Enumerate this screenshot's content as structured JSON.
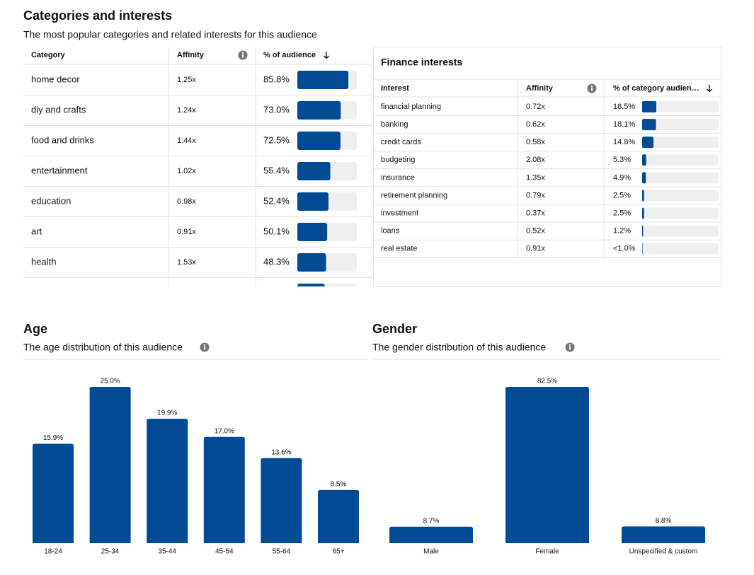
{
  "header": {
    "title": "Categories and interests",
    "subtitle": "The most popular categories and related interests for this audience"
  },
  "categories_table": {
    "columns": [
      "Category",
      "Affinity",
      "% of audience"
    ],
    "categories": [
      "home decor",
      "diy and crafts",
      "food and drinks",
      "entertainment",
      "education",
      "art",
      "health",
      null
    ],
    "affinity": [
      "1.25x",
      "1.24x",
      "1.44x",
      "1.02x",
      "0.98x",
      "0.91x",
      "1.53x",
      null
    ],
    "percent": [
      85.8,
      73.0,
      72.5,
      55.4,
      52.4,
      50.1,
      48.3,
      46
    ],
    "percent_labels": [
      "85.8%",
      "73.0%",
      "72.5%",
      "55.4%",
      "52.4%",
      "50.1%",
      "48.3%",
      null
    ],
    "bar_range": [
      0,
      100
    ],
    "color": "#004b93"
  },
  "finance_table": {
    "title": "Finance interests",
    "columns": [
      "Interest",
      "Affinity",
      "% of category audien…"
    ],
    "interests": [
      "financial planning",
      "banking",
      "credit cards",
      "budgeting",
      "insurance",
      "retirement planning",
      "investment",
      "loans",
      "real estate"
    ],
    "affinity": [
      "0.72x",
      "0.62x",
      "0.58x",
      "2.08x",
      "1.35x",
      "0.79x",
      "0.37x",
      "0.52x",
      "0.91x"
    ],
    "percent": [
      18.5,
      18.1,
      14.8,
      5.3,
      4.9,
      2.5,
      2.5,
      1.2,
      0.5
    ],
    "percent_labels": [
      "18.5%",
      "18.1%",
      "14.8%",
      "5.3%",
      "4.9%",
      "2.5%",
      "2.5%",
      "1.2%",
      "<1.0%"
    ],
    "bar_range": [
      0,
      100
    ],
    "color": "#004b93"
  },
  "chart_data": [
    {
      "type": "bar",
      "title": "Age",
      "subtitle": "The age distribution of this audience",
      "categories": [
        "18-24",
        "25-34",
        "35-44",
        "45-54",
        "55-64",
        "65+"
      ],
      "values": [
        15.9,
        25.0,
        19.9,
        17.0,
        13.6,
        8.5
      ],
      "value_labels": [
        "15.9%",
        "25.0%",
        "19.9%",
        "17.0%",
        "13.6%",
        "8.5%"
      ],
      "color": "#004b93",
      "ylim": [
        0,
        25
      ]
    },
    {
      "type": "bar",
      "title": "Gender",
      "subtitle": "The gender distribution of this audience",
      "categories": [
        "Male",
        "Female",
        "Unspecified & custom"
      ],
      "values": [
        8.7,
        82.5,
        8.8
      ],
      "value_labels": [
        "8.7%",
        "82.5%",
        "8.8%"
      ],
      "color": "#004b93",
      "ylim": [
        0,
        82.5
      ]
    }
  ]
}
